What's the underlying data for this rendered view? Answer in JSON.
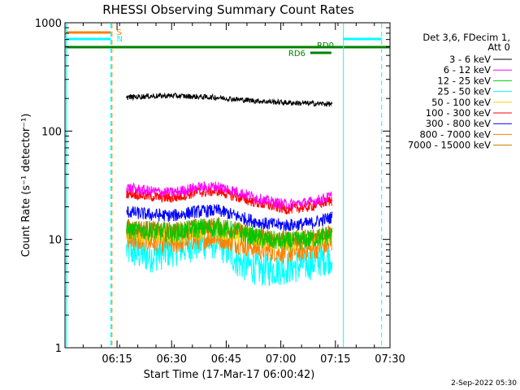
{
  "chart_data": {
    "type": "line",
    "title": "RHESSI Observing Summary Count Rates",
    "xlabel": "Start Time (17-Mar-17 06:00:42)",
    "ylabel": "Count Rate (s⁻¹ detector⁻¹)",
    "yscale": "log",
    "ylim": [
      1,
      1000
    ],
    "xlim_minutes_from_start": [
      0,
      89.3
    ],
    "x_ticks": [
      {
        "label": "06:15",
        "minutes": 14.3
      },
      {
        "label": "06:30",
        "minutes": 29.3
      },
      {
        "label": "06:45",
        "minutes": 44.3
      },
      {
        "label": "07:00",
        "minutes": 59.3
      },
      {
        "label": "07:15",
        "minutes": 74.3
      },
      {
        "label": "07:30",
        "minutes": 89.3
      }
    ],
    "y_ticks": [
      {
        "label": "1",
        "value": 1
      },
      {
        "label": "10",
        "value": 10
      },
      {
        "label": "100",
        "value": 100
      },
      {
        "label": "1000",
        "value": 1000
      }
    ],
    "legend_header": [
      "Det 3,6, FDecim 1,",
      "Att 0"
    ],
    "legend_position": "right",
    "data_start_minutes": 16.9,
    "data_end_minutes": 73.4,
    "series": [
      {
        "name": "3 - 6 keV",
        "color": "#000000",
        "values": [
          205,
          210,
          212,
          208,
          204,
          195,
          188,
          183,
          180,
          178
        ],
        "noise": 0.025
      },
      {
        "name": "6 - 12 keV",
        "color": "#ff00ff",
        "values": [
          30,
          28,
          27,
          30,
          31,
          27,
          23,
          21,
          22,
          25
        ],
        "noise": 0.05
      },
      {
        "name": "12 - 25 keV",
        "color": "#00c800",
        "values": [
          12,
          12,
          11.5,
          12.5,
          13,
          11.5,
          10,
          9.5,
          10,
          11
        ],
        "noise": 0.09
      },
      {
        "name": "25 - 50 keV",
        "color": "#00ffff",
        "values": [
          8,
          7,
          8,
          9,
          9.5,
          6,
          5.2,
          5.5,
          6,
          7
        ],
        "noise": 0.16
      },
      {
        "name": "50 - 100 keV",
        "color": "#ffd200",
        "values": [
          12,
          11,
          11,
          12,
          12.5,
          11,
          10,
          9.5,
          10,
          11
        ],
        "noise": 0.09
      },
      {
        "name": "100 - 300 keV",
        "color": "#ff0000",
        "values": [
          27,
          25,
          24,
          27,
          28,
          24,
          21,
          19,
          20,
          23
        ],
        "noise": 0.05
      },
      {
        "name": "300 - 800 keV",
        "color": "#0000ff",
        "values": [
          18,
          17,
          16.5,
          18,
          18.5,
          16,
          14,
          13.5,
          14,
          16
        ],
        "noise": 0.06
      },
      {
        "name": "800 - 7000 keV",
        "color": "#ff8000",
        "values": [
          10,
          9.5,
          9,
          10,
          10.5,
          9,
          8,
          7.5,
          8,
          9
        ],
        "noise": 0.1
      },
      {
        "name": "7000 - 15000 keV",
        "color": "#c87800",
        "values": [
          13,
          12.5,
          12,
          13,
          13.5,
          12,
          10.5,
          10,
          10.5,
          12
        ],
        "noise": 0.08
      }
    ],
    "flag_bars": [
      {
        "label": "S",
        "color": "#ff8000",
        "start_minutes": 0,
        "end_minutes": 12.6
      },
      {
        "label": "N",
        "color": "#00ffff",
        "start_minutes": 0,
        "end_minutes": 12.6
      },
      {
        "label": "",
        "color": "#00ffff",
        "start_minutes": 76.4,
        "end_minutes": 87.0
      },
      {
        "label": "RD0",
        "color": "#008000",
        "start_minutes": 0,
        "end_minutes": 89.3
      },
      {
        "label": "RD6",
        "color": "#008000",
        "start_minutes": 67.4,
        "end_minutes": 73.2
      }
    ],
    "vertical_markers": [
      {
        "kind": "solid",
        "color": "#00ffff",
        "minutes": 0.4
      },
      {
        "kind": "dashed",
        "color": "#00ffff",
        "minutes": 12.6
      },
      {
        "kind": "dashed",
        "color": "#ff8000",
        "minutes": 12.9
      },
      {
        "kind": "solid",
        "color": "#00ffff",
        "minutes": 76.5
      },
      {
        "kind": "dashed",
        "color": "#00ffff",
        "minutes": 87.0
      }
    ]
  },
  "footer": {
    "date_stamp": "2-Sep-2022 05:30"
  }
}
